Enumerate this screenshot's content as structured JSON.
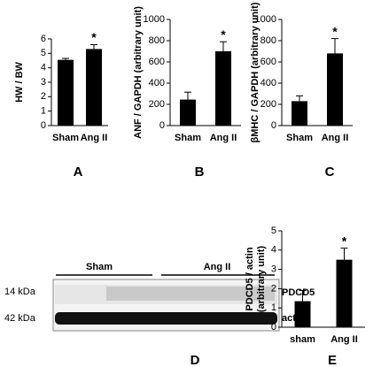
{
  "chart_data": [
    {
      "type": "bar",
      "panel": "A",
      "ylabel": "HW / BW",
      "categories": [
        "Sham",
        "Ang II"
      ],
      "values": [
        4.55,
        5.3
      ],
      "errors": [
        0.1,
        0.3
      ],
      "annotation": "*",
      "color": "#000000",
      "ylim": [
        0,
        6
      ],
      "yticks": [
        0,
        1,
        2,
        3,
        4,
        5,
        6
      ]
    },
    {
      "type": "bar",
      "panel": "B",
      "ylabel": "ANF / GAPDH (arbitrary unit)",
      "categories": [
        "Sham",
        "Ang II"
      ],
      "values": [
        245,
        700
      ],
      "errors": [
        70,
        90
      ],
      "annotation": "*",
      "color": "#000000",
      "ylim": [
        0,
        1000
      ],
      "yticks": [
        0,
        200,
        400,
        600,
        800,
        1000
      ]
    },
    {
      "type": "bar",
      "panel": "C",
      "ylabel": "βMHC / GAPDH (arbitrary unit)",
      "categories": [
        "Sham",
        "Ang II"
      ],
      "values": [
        230,
        680
      ],
      "errors": [
        50,
        140
      ],
      "annotation": "*",
      "color": "#000000",
      "ylim": [
        0,
        1000
      ],
      "yticks": [
        0,
        200,
        400,
        600,
        800,
        1000
      ]
    },
    {
      "type": "bar",
      "panel": "E",
      "ylabel": [
        "PDCD5 / actin",
        "(arbitrary unit)"
      ],
      "categories": [
        "sham",
        "Ang II"
      ],
      "values": [
        1.35,
        3.5
      ],
      "errors": [
        0.55,
        0.6
      ],
      "annotation": "*",
      "color": "#000000",
      "ylim": [
        0,
        5
      ],
      "yticks": [
        0,
        1,
        2,
        3,
        4,
        5
      ]
    }
  ],
  "blot": {
    "panel": "D",
    "groups": [
      "Sham",
      "Ang II"
    ],
    "markers": [
      "14 kDa",
      "42 kDa"
    ],
    "bands": [
      "PDCD5",
      "actin"
    ]
  }
}
